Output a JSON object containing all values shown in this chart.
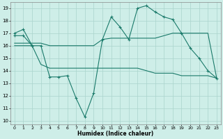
{
  "bg_color": "#ceeee8",
  "grid_color": "#aad4cc",
  "line_color": "#1a7a6a",
  "xlabel": "Humidex (Indice chaleur)",
  "xlim": [
    -0.5,
    23.5
  ],
  "ylim": [
    9.7,
    19.5
  ],
  "yticks": [
    10,
    11,
    12,
    13,
    14,
    15,
    16,
    17,
    18,
    19
  ],
  "xticks": [
    0,
    1,
    2,
    3,
    4,
    5,
    6,
    7,
    8,
    9,
    10,
    11,
    12,
    13,
    14,
    15,
    16,
    17,
    18,
    19,
    20,
    21,
    22,
    23
  ],
  "series": [
    {
      "x": [
        0,
        1,
        2
      ],
      "y": [
        17.0,
        17.3,
        16.0
      ],
      "marker": true
    },
    {
      "x": [
        0,
        1,
        2,
        3,
        4,
        5,
        6,
        7,
        8,
        9,
        10,
        11,
        12,
        13,
        14,
        15,
        16,
        17,
        18,
        19,
        20,
        21,
        22,
        23
      ],
      "y": [
        16.8,
        16.8,
        16.0,
        16.0,
        13.5,
        13.5,
        13.6,
        11.8,
        10.3,
        12.2,
        16.5,
        18.3,
        17.5,
        16.5,
        19.0,
        19.2,
        18.7,
        18.3,
        18.1,
        17.0,
        15.8,
        15.0,
        14.0,
        13.4
      ],
      "marker": true
    },
    {
      "x": [
        0,
        1,
        2,
        3,
        4,
        5,
        6,
        7,
        8,
        9,
        10,
        11,
        12,
        13,
        14,
        15,
        16,
        17,
        18,
        19,
        20,
        21,
        22,
        23
      ],
      "y": [
        16.2,
        16.2,
        16.2,
        16.2,
        16.0,
        16.0,
        16.0,
        16.0,
        16.0,
        16.0,
        16.5,
        16.6,
        16.6,
        16.6,
        16.6,
        16.6,
        16.6,
        16.8,
        17.0,
        17.0,
        17.0,
        17.0,
        17.0,
        13.4
      ],
      "marker": false
    },
    {
      "x": [
        0,
        1,
        2,
        3,
        4,
        5,
        6,
        7,
        8,
        9,
        10,
        11,
        12,
        13,
        14,
        15,
        16,
        17,
        18,
        19,
        20,
        21,
        22,
        23
      ],
      "y": [
        16.0,
        16.0,
        16.0,
        14.5,
        14.2,
        14.2,
        14.2,
        14.2,
        14.2,
        14.2,
        14.2,
        14.2,
        14.2,
        14.2,
        14.2,
        14.0,
        13.8,
        13.8,
        13.8,
        13.6,
        13.6,
        13.6,
        13.6,
        13.4
      ],
      "marker": false
    }
  ]
}
